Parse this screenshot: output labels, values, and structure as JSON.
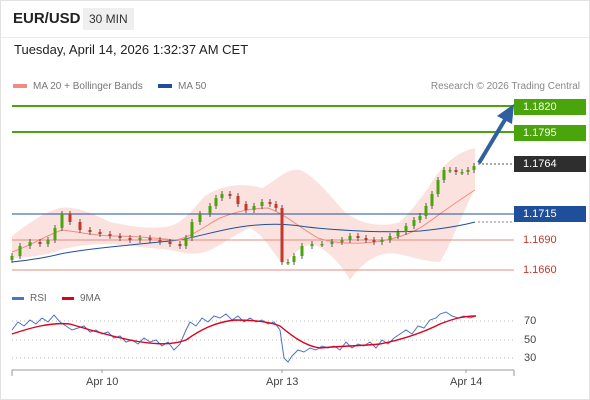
{
  "header": {
    "symbol": "EUR/USD",
    "timeframe": "30 MIN"
  },
  "datetime": "Tuesday, April 14, 2026 1:32:37 AM CET",
  "legend": {
    "ma20_label": "MA 20 + Bollinger Bands",
    "ma50_label": "MA 50",
    "ma20_color": "#f28b82",
    "ma50_color": "#1f4f9a"
  },
  "credit": "Research © 2026 Trading Central",
  "levels": {
    "r2": "1.1820",
    "r1": "1.1795",
    "last": "1.1764",
    "pivot": "1.1715",
    "s1": "1.1690",
    "s2": "1.1660"
  },
  "rsi": {
    "rsi_label": "RSI",
    "ma_label": "9MA",
    "rsi_color": "#4a74c9",
    "ma_color": "#e0001b",
    "ticks": [
      "70",
      "50",
      "30"
    ]
  },
  "xaxis": {
    "ticks": [
      "Apr 10",
      "Apr 13",
      "Apr 14"
    ]
  },
  "colors": {
    "resistance": "#4aa40b",
    "support": "#c0392b",
    "pivot": "#1f4f9a",
    "arrow": "#2f5f9e",
    "bullish": "#4aa40b",
    "bearish": "#c0392b"
  }
}
